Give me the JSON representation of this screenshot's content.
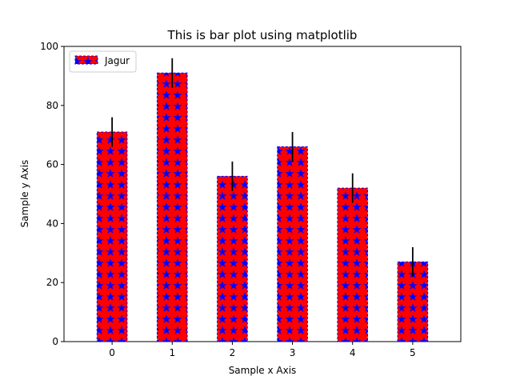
{
  "chart_data": {
    "type": "bar",
    "title": "This is bar plot using matplotlib",
    "xlabel": "Sample x Axis",
    "ylabel": "Sample y Axis",
    "categories": [
      "0",
      "1",
      "2",
      "3",
      "4",
      "5"
    ],
    "series": [
      {
        "name": "Jagur",
        "values": [
          71,
          91,
          56,
          66,
          52,
          27
        ],
        "errors": [
          5,
          5,
          5,
          5,
          5,
          5
        ]
      }
    ],
    "ylim": [
      0,
      100
    ],
    "yticks": [
      "0",
      "20",
      "40",
      "60",
      "80",
      "100"
    ],
    "legend_position": "top-left",
    "grid": false,
    "colors": {
      "bar_fill": "#ff0000",
      "bar_hatch": "#0000ff",
      "bar_edge": "#0000ff",
      "error_bar": "#000000"
    },
    "hatch": "star"
  }
}
